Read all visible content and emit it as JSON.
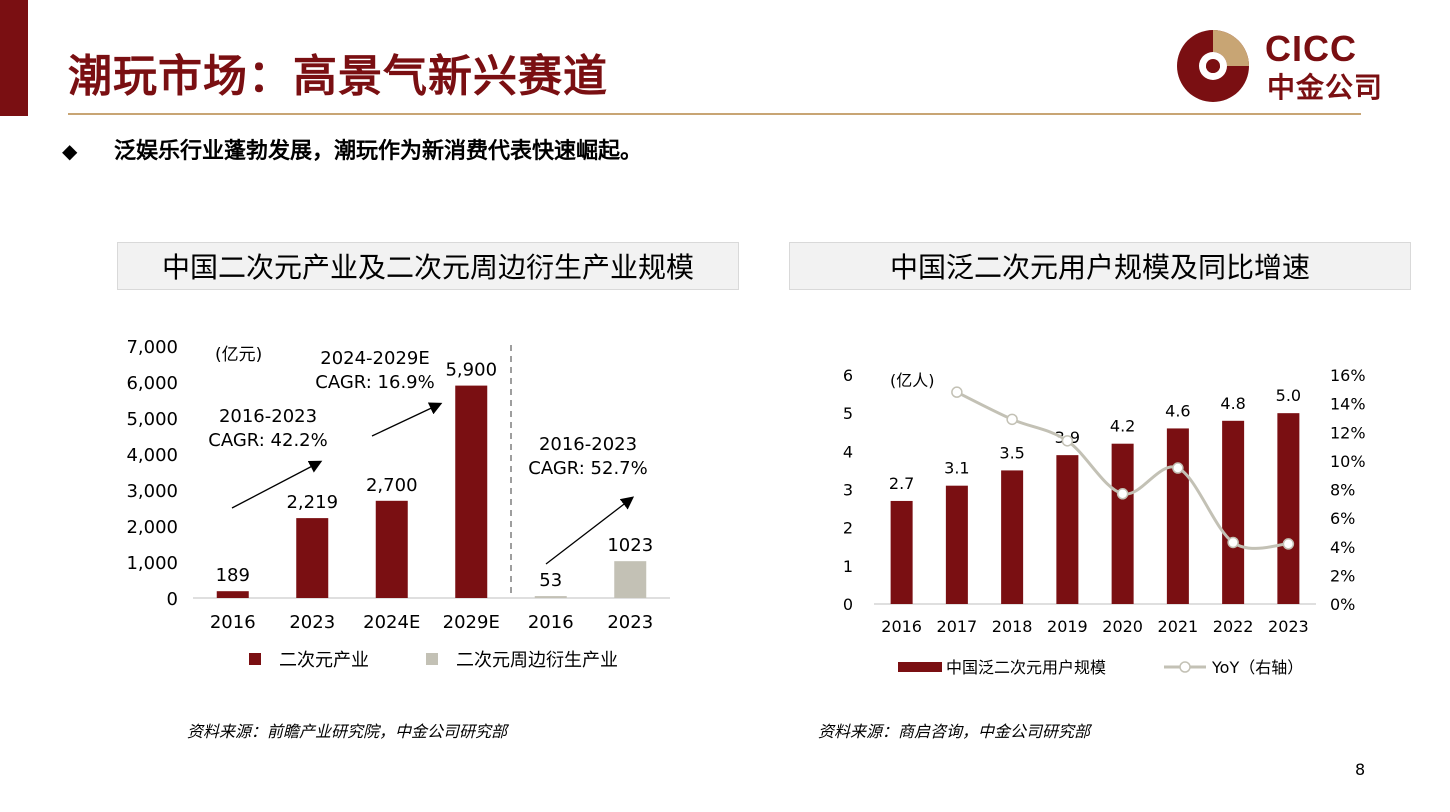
{
  "page": {
    "title": "潮玩市场：高景气新兴赛道",
    "bullet": "泛娱乐行业蓬勃发展，潮玩作为新消费代表快速崛起。",
    "page_number": "8"
  },
  "logo": {
    "en": "CICC",
    "cn": "中金公司",
    "icon": "cicc-logo-icon"
  },
  "colors": {
    "brand": "#7a0f12",
    "gray_bar": "#c3c1b5",
    "yoy_line": "#c3c1b5",
    "gold": "#c8a574"
  },
  "left_panel": {
    "heading": "中国二次元产业及二次元周边衍生产业规模",
    "source": "资料来源：前瞻产业研究院，中金公司研究部"
  },
  "right_panel": {
    "heading": "中国泛二次元用户规模及同比增速",
    "source": "资料来源：商启咨询，中金公司研究部"
  },
  "chart_data": [
    {
      "type": "bar",
      "unit_label": "(亿元)",
      "categories": [
        "2016",
        "2023",
        "2024E",
        "2029E",
        "2016",
        "2023"
      ],
      "yticks": [
        "7,000",
        "6,000",
        "5,000",
        "4,000",
        "3,000",
        "2,000",
        "1,000",
        "0"
      ],
      "ylim": [
        0,
        7000
      ],
      "series": [
        {
          "name": "二次元产业",
          "color": "#7a0f12",
          "values": [
            189,
            2219,
            2700,
            5900,
            null,
            null
          ],
          "labels": [
            "189",
            "2,219",
            "2,700",
            "5,900",
            "",
            ""
          ]
        },
        {
          "name": "二次元周边衍生产业",
          "color": "#c3c1b5",
          "values": [
            null,
            null,
            null,
            null,
            53,
            1023
          ],
          "labels": [
            "",
            "",
            "",
            "",
            "53",
            "1023"
          ]
        }
      ],
      "annotations": [
        {
          "line1": "2016-2023",
          "line2": "CAGR: 42.2%"
        },
        {
          "line1": "2024-2029E",
          "line2": "CAGR: 16.9%"
        },
        {
          "line1": "2016-2023",
          "line2": "CAGR: 52.7%"
        }
      ],
      "legend_position": "bottom"
    },
    {
      "type": "bar+line",
      "unit_label": "(亿人)",
      "categories": [
        "2016",
        "2017",
        "2018",
        "2019",
        "2020",
        "2021",
        "2022",
        "2023"
      ],
      "yticks_left": [
        "6",
        "5",
        "4",
        "3",
        "2",
        "1",
        "0"
      ],
      "yticks_right": [
        "16%",
        "14%",
        "12%",
        "10%",
        "8%",
        "6%",
        "4%",
        "2%",
        "0%"
      ],
      "ylim_left": [
        0,
        6
      ],
      "ylim_right": [
        0,
        16
      ],
      "series": [
        {
          "name": "中国泛二次元用户规模",
          "type": "bar",
          "axis": "left",
          "color": "#7a0f12",
          "values": [
            2.7,
            3.1,
            3.5,
            3.9,
            4.2,
            4.6,
            4.8,
            5.0
          ],
          "labels": [
            "2.7",
            "3.1",
            "3.5",
            "3.9",
            "4.2",
            "4.6",
            "4.8",
            "5.0"
          ]
        },
        {
          "name": "YoY（右轴）",
          "type": "line",
          "axis": "right",
          "color": "#c3c1b5",
          "values": [
            null,
            14.8,
            12.9,
            11.4,
            7.7,
            9.5,
            4.3,
            4.2
          ]
        }
      ],
      "legend_position": "bottom"
    }
  ]
}
